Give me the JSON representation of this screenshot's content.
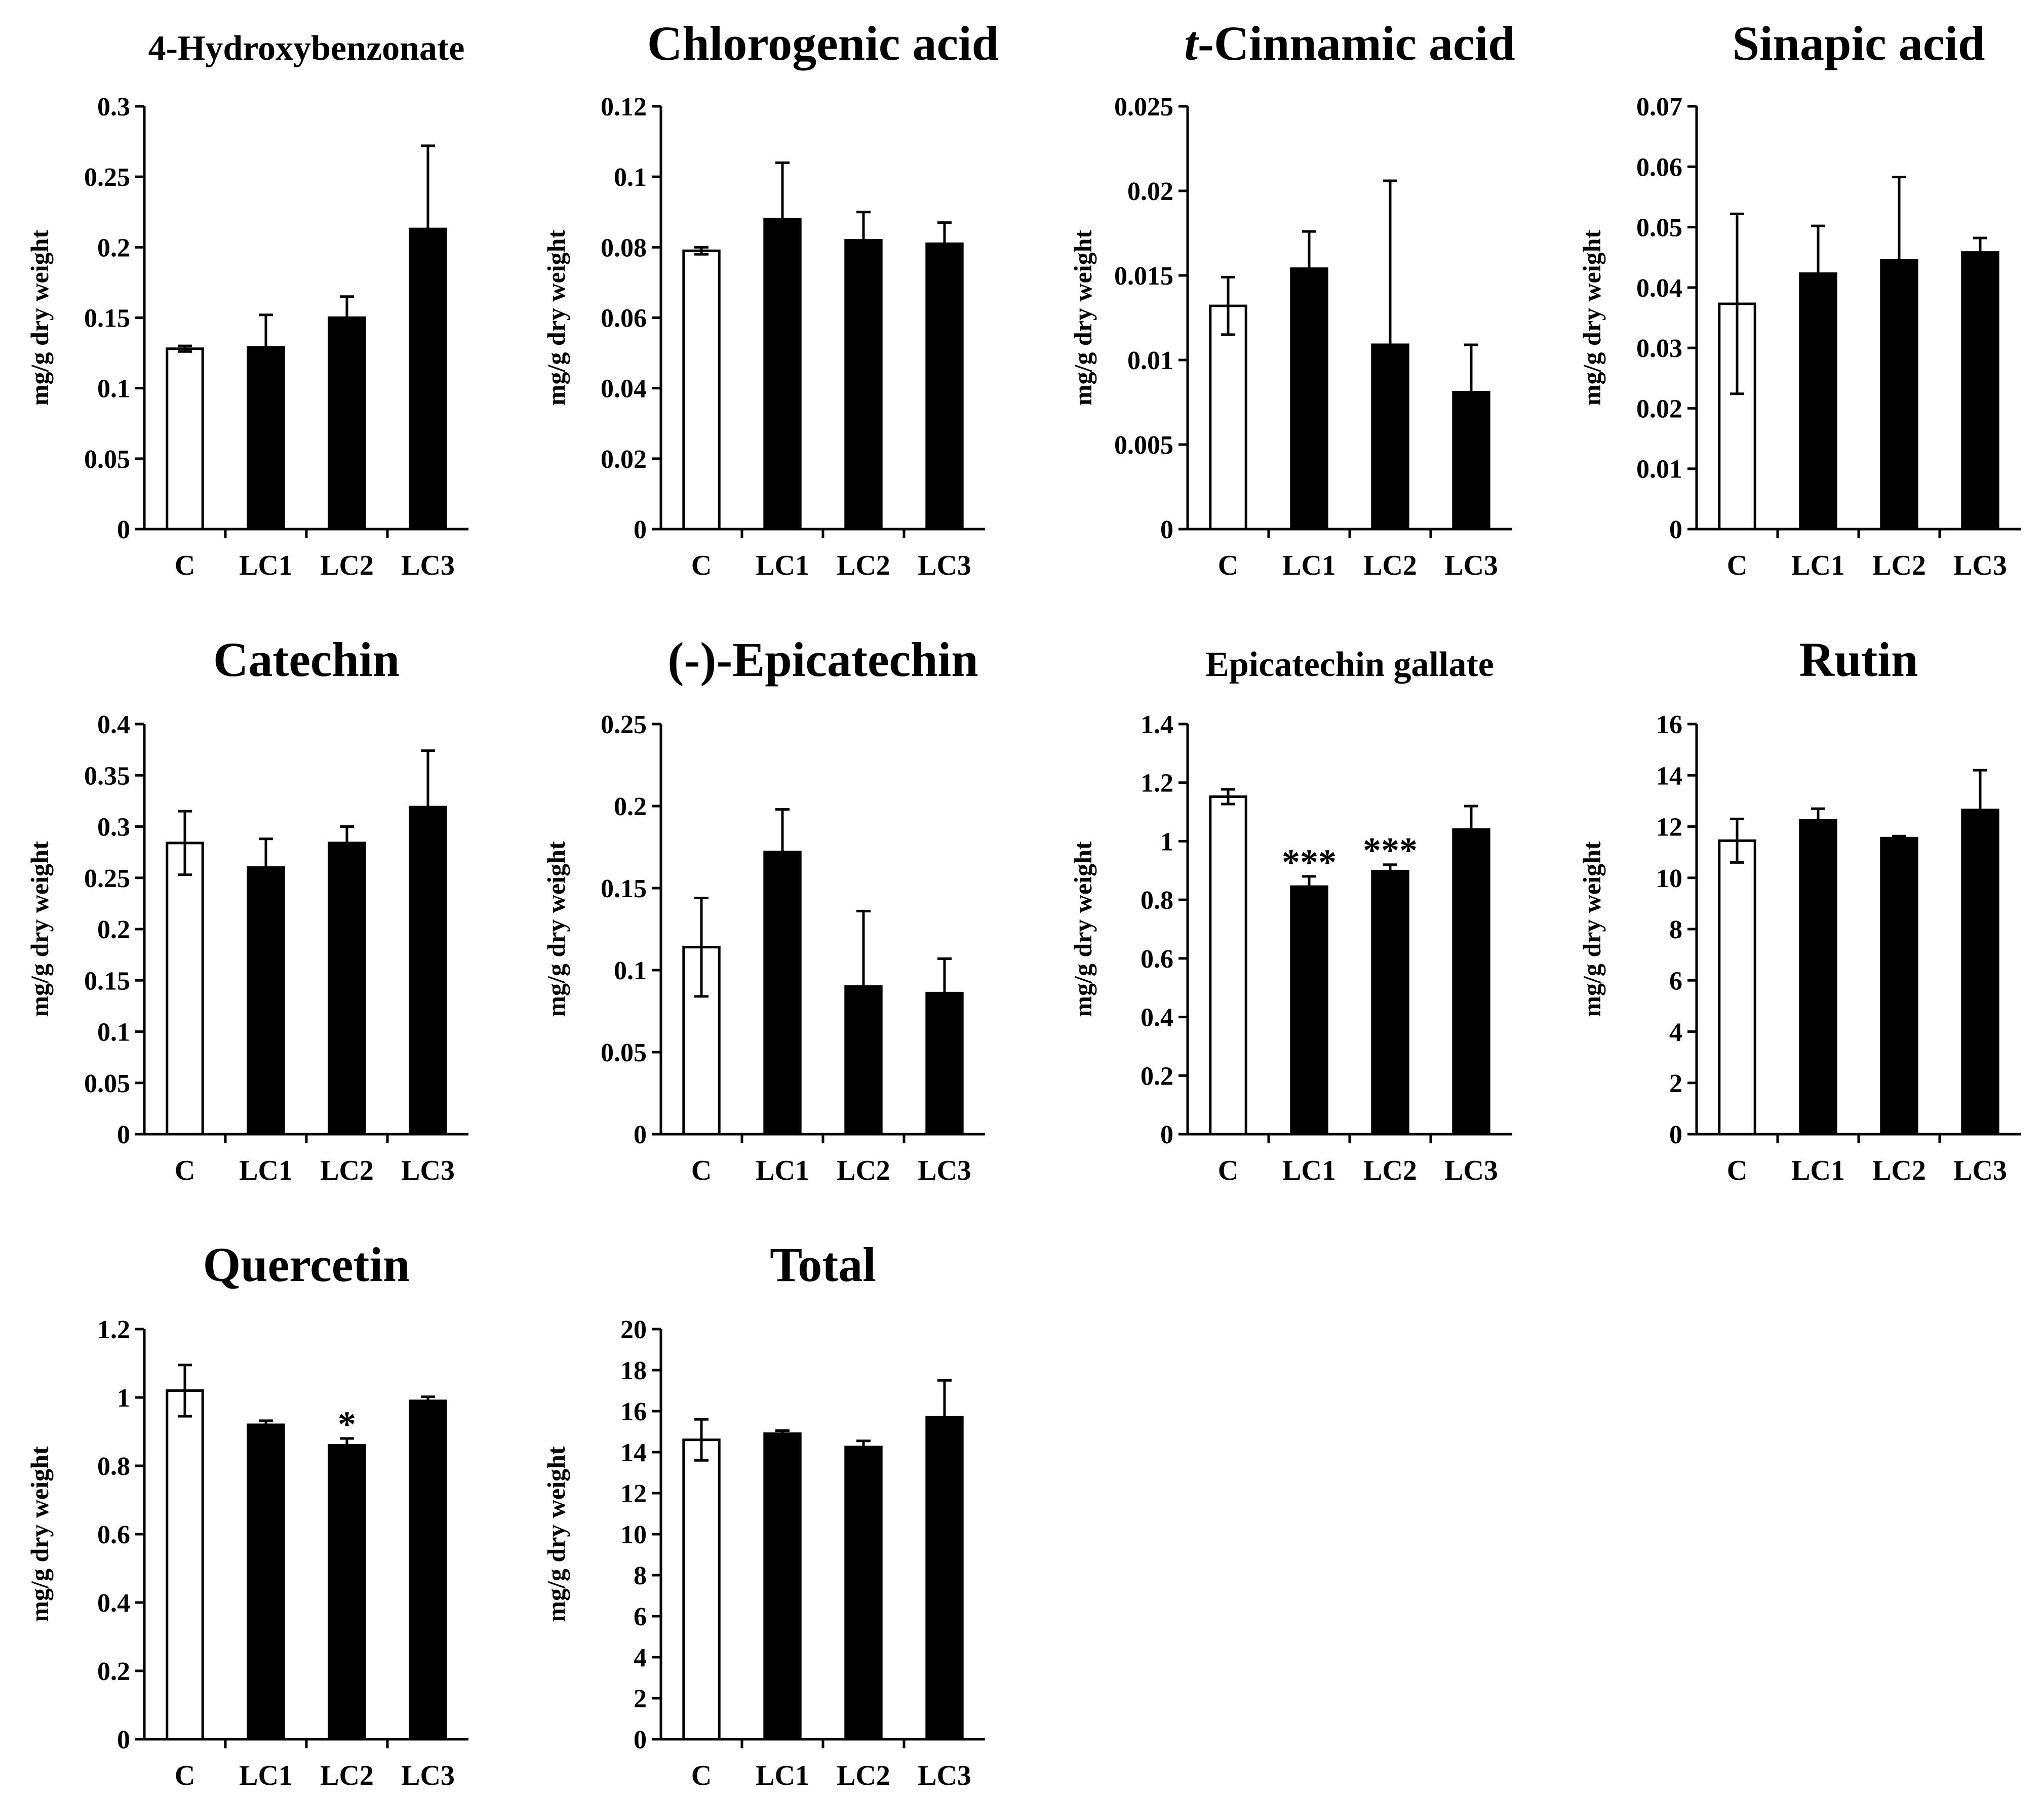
{
  "chart_data": [
    {
      "type": "bar",
      "title": "4-Hydroxybenzonate",
      "ylabel": "mg/g dry weight",
      "categories": [
        "C",
        "LC1",
        "LC2",
        "LC3"
      ],
      "values": [
        0.128,
        0.129,
        0.15,
        0.213
      ],
      "errors": [
        0.002,
        0.023,
        0.015,
        0.059
      ],
      "ylim": [
        0,
        0.3
      ],
      "yticks": [
        "0",
        "0.05",
        "0.1",
        "0.15",
        "0.2",
        "0.25",
        "0.3"
      ],
      "significance": [
        "",
        "",
        "",
        ""
      ],
      "bar_colors": [
        "#ffffff",
        "#000000",
        "#000000",
        "#000000"
      ]
    },
    {
      "type": "bar",
      "title": "Chlorogenic acid",
      "ylabel": "mg/g dry weight",
      "categories": [
        "C",
        "LC1",
        "LC2",
        "LC3"
      ],
      "values": [
        0.079,
        0.088,
        0.082,
        0.081
      ],
      "errors": [
        0.001,
        0.016,
        0.008,
        0.006
      ],
      "ylim": [
        0,
        0.12
      ],
      "yticks": [
        "0",
        "0.02",
        "0.04",
        "0.06",
        "0.08",
        "0.1",
        "0.12"
      ],
      "significance": [
        "",
        "",
        "",
        ""
      ],
      "bar_colors": [
        "#ffffff",
        "#000000",
        "#000000",
        "#000000"
      ]
    },
    {
      "type": "bar",
      "title": "t-Cinnamic acid",
      "title_italic_prefix": "t",
      "title_rest": "-Cinnamic acid",
      "ylabel": "mg/g dry weight",
      "categories": [
        "C",
        "LC1",
        "LC2",
        "LC3"
      ],
      "values": [
        0.0132,
        0.0154,
        0.0109,
        0.0081
      ],
      "errors": [
        0.0017,
        0.0022,
        0.0097,
        0.0028
      ],
      "ylim": [
        0,
        0.025
      ],
      "yticks": [
        "0",
        "0.005",
        "0.01",
        "0.015",
        "0.02",
        "0.025"
      ],
      "significance": [
        "",
        "",
        "",
        ""
      ],
      "bar_colors": [
        "#ffffff",
        "#000000",
        "#000000",
        "#000000"
      ]
    },
    {
      "type": "bar",
      "title": "Sinapic acid",
      "ylabel": "mg/g dry weight",
      "categories": [
        "C",
        "LC1",
        "LC2",
        "LC3"
      ],
      "values": [
        0.0373,
        0.0423,
        0.0445,
        0.0458
      ],
      "errors": [
        0.0149,
        0.0079,
        0.0138,
        0.0024
      ],
      "ylim": [
        0,
        0.07
      ],
      "yticks": [
        "0",
        "0.01",
        "0.02",
        "0.03",
        "0.04",
        "0.05",
        "0.06",
        "0.07"
      ],
      "significance": [
        "",
        "",
        "",
        ""
      ],
      "bar_colors": [
        "#ffffff",
        "#000000",
        "#000000",
        "#000000"
      ]
    },
    {
      "type": "bar",
      "title": "Catechin",
      "ylabel": "mg/g dry weight",
      "categories": [
        "C",
        "LC1",
        "LC2",
        "LC3"
      ],
      "values": [
        0.284,
        0.26,
        0.284,
        0.319
      ],
      "errors": [
        0.031,
        0.028,
        0.016,
        0.055
      ],
      "ylim": [
        0,
        0.4
      ],
      "yticks": [
        "0",
        "0.05",
        "0.1",
        "0.15",
        "0.2",
        "0.25",
        "0.3",
        "0.35",
        "0.4"
      ],
      "significance": [
        "",
        "",
        "",
        ""
      ],
      "bar_colors": [
        "#ffffff",
        "#000000",
        "#000000",
        "#000000"
      ]
    },
    {
      "type": "bar",
      "title": "(-)-Epicatechin",
      "ylabel": "mg/g dry weight",
      "categories": [
        "C",
        "LC1",
        "LC2",
        "LC3"
      ],
      "values": [
        0.114,
        0.172,
        0.09,
        0.086
      ],
      "errors": [
        0.03,
        0.026,
        0.046,
        0.021
      ],
      "ylim": [
        0,
        0.25
      ],
      "yticks": [
        "0",
        "0.05",
        "0.1",
        "0.15",
        "0.2",
        "0.25"
      ],
      "significance": [
        "",
        "",
        "",
        ""
      ],
      "bar_colors": [
        "#ffffff",
        "#000000",
        "#000000",
        "#000000"
      ]
    },
    {
      "type": "bar",
      "title": "Epicatechin gallate",
      "ylabel": "mg/g dry weight",
      "categories": [
        "C",
        "LC1",
        "LC2",
        "LC3"
      ],
      "values": [
        1.152,
        0.845,
        0.898,
        1.04
      ],
      "errors": [
        0.025,
        0.035,
        0.022,
        0.08
      ],
      "ylim": [
        0,
        1.4
      ],
      "yticks": [
        "0",
        "0.2",
        "0.4",
        "0.6",
        "0.8",
        "1",
        "1.2",
        "1.4"
      ],
      "significance": [
        "",
        "***",
        "***",
        ""
      ],
      "bar_colors": [
        "#ffffff",
        "#000000",
        "#000000",
        "#000000"
      ]
    },
    {
      "type": "bar",
      "title": "Rutin",
      "ylabel": "mg/g dry weight",
      "categories": [
        "C",
        "LC1",
        "LC2",
        "LC3"
      ],
      "values": [
        11.45,
        12.25,
        11.55,
        12.65
      ],
      "errors": [
        0.85,
        0.45,
        0.08,
        1.55
      ],
      "ylim": [
        0,
        16
      ],
      "yticks": [
        "0",
        "2",
        "4",
        "6",
        "8",
        "10",
        "12",
        "14",
        "16"
      ],
      "significance": [
        "",
        "",
        "",
        ""
      ],
      "bar_colors": [
        "#ffffff",
        "#000000",
        "#000000",
        "#000000"
      ]
    },
    {
      "type": "bar",
      "title": "Quercetin",
      "ylabel": "mg/g dry weight",
      "categories": [
        "C",
        "LC1",
        "LC2",
        "LC3"
      ],
      "values": [
        1.02,
        0.92,
        0.86,
        0.99
      ],
      "errors": [
        0.075,
        0.012,
        0.02,
        0.012
      ],
      "ylim": [
        0,
        1.2
      ],
      "yticks": [
        "0",
        "0.2",
        "0.4",
        "0.6",
        "0.8",
        "1",
        "1.2"
      ],
      "significance": [
        "",
        "",
        "*",
        ""
      ],
      "bar_colors": [
        "#ffffff",
        "#000000",
        "#000000",
        "#000000"
      ]
    },
    {
      "type": "bar",
      "title": "Total",
      "ylabel": "mg/g dry weight",
      "categories": [
        "C",
        "LC1",
        "LC2",
        "LC3"
      ],
      "values": [
        14.6,
        14.9,
        14.25,
        15.7
      ],
      "errors": [
        1.0,
        0.15,
        0.3,
        1.8
      ],
      "ylim": [
        0,
        20
      ],
      "yticks": [
        "0",
        "2",
        "4",
        "6",
        "8",
        "10",
        "12",
        "14",
        "16",
        "18",
        "20"
      ],
      "significance": [
        "",
        "",
        "",
        ""
      ],
      "bar_colors": [
        "#ffffff",
        "#000000",
        "#000000",
        "#000000"
      ]
    }
  ]
}
